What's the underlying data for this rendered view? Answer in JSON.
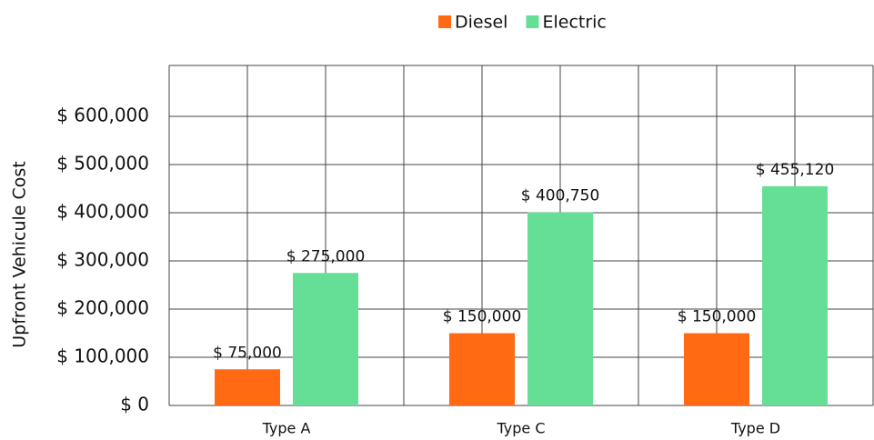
{
  "chart_data": {
    "type": "bar",
    "y_label": "Upfront Vehicule Cost",
    "categories": [
      "Type A",
      "Type C",
      "Type D"
    ],
    "series": [
      {
        "name": "Diesel",
        "color": "#ff6a13",
        "values": [
          75000,
          150000,
          150000
        ],
        "value_labels": [
          "$ 75,000",
          "$ 150,000",
          "$ 150,000"
        ]
      },
      {
        "name": "Electric",
        "color": "#66df96",
        "values": [
          275000,
          400750,
          455120
        ],
        "value_labels": [
          "$ 275,000",
          "$ 400,750",
          "$ 455,120"
        ]
      }
    ],
    "ylim": [
      0,
      700000
    ],
    "yticks": [
      {
        "value": 0,
        "label": "$ 0"
      },
      {
        "value": 100000,
        "label": "$ 100,000"
      },
      {
        "value": 200000,
        "label": "$ 200,000"
      },
      {
        "value": 300000,
        "label": "$ 300,000"
      },
      {
        "value": 400000,
        "label": "$ 400,000"
      },
      {
        "value": 500000,
        "label": "$ 500,000"
      },
      {
        "value": 600000,
        "label": "$ 600,000"
      }
    ],
    "grid": true,
    "legend": "top"
  }
}
